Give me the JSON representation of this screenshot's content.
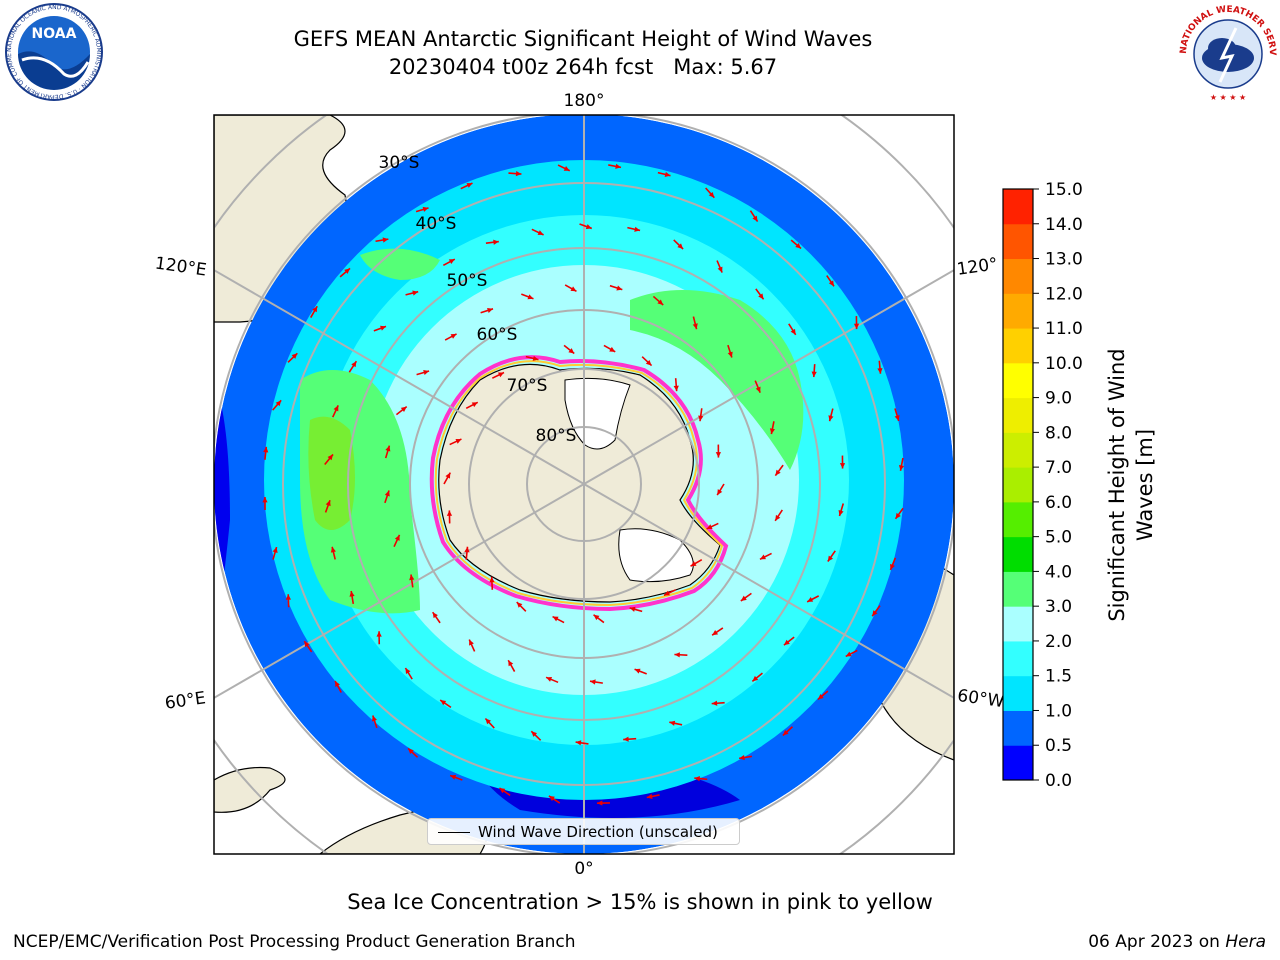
{
  "header": {
    "title_line1": "GEFS MEAN Antarctic Significant Height of Wind Waves",
    "title_line2": "20230404 t00z 264h fcst   Max: 5.67"
  },
  "logos": {
    "left": {
      "name": "NOAA",
      "ring_text": "NATIONAL OCEANIC AND ATMOSPHERIC ADMINISTRATION · U.S. DEPARTMENT OF COMMERCE"
    },
    "right": {
      "name": "NATIONAL WEATHER SERVICE"
    }
  },
  "map": {
    "projection": "south-polar-stereographic",
    "longitude_labels": {
      "top": "180°",
      "bottom": "0°",
      "upper_left": "120°E",
      "upper_right": "120°",
      "lower_left": "60°E",
      "lower_right": "60°W"
    },
    "latitude_labels": [
      "30°S",
      "40°S",
      "50°S",
      "60°S",
      "70°S",
      "80°S"
    ],
    "arrow_color": "#ee0000",
    "land_color": "#efebd8",
    "ice_edge_colors": [
      "#ff33cc",
      "#ffcc33"
    ]
  },
  "legend": {
    "label": "Wind Wave Direction (unscaled)"
  },
  "colorbar": {
    "title_line1": "Significant Height of Wind",
    "title_line2": "Waves [m]",
    "ticks": [
      "0.0",
      "0.5",
      "1.0",
      "1.5",
      "2.0",
      "3.0",
      "4.0",
      "5.0",
      "6.0",
      "7.0",
      "8.0",
      "9.0",
      "10.0",
      "11.0",
      "12.0",
      "13.0",
      "14.0",
      "15.0"
    ],
    "colors": [
      "#0000ff",
      "#0066ff",
      "#00e5ff",
      "#33ffff",
      "#aaffff",
      "#55ff77",
      "#00dd00",
      "#55ee00",
      "#aaee00",
      "#ccee00",
      "#eeee00",
      "#ffff00",
      "#ffd000",
      "#ffaa00",
      "#ff8800",
      "#ff5500",
      "#ff2200"
    ]
  },
  "footer": {
    "note": "Sea Ice Concentration > 15% is shown in pink to yellow",
    "left": "NCEP/EMC/Verification Post Processing Product Generation Branch",
    "right_prefix": "06 Apr 2023 on ",
    "right_host": "Hera"
  }
}
